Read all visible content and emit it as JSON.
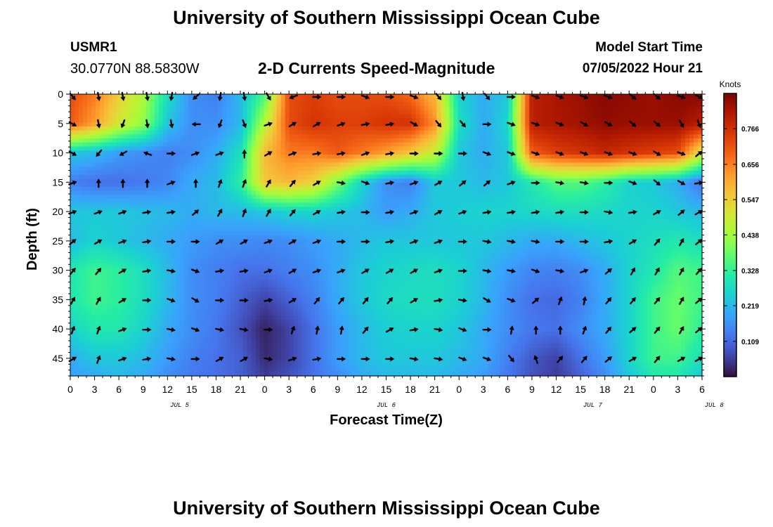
{
  "header": {
    "title": "University of Southern Mississippi Ocean Cube",
    "station": "USMR1",
    "coordinates": "30.0770N  88.5830W",
    "subtitle": "2-D Currents Speed-Magnitude",
    "model_start_label": "Model Start Time",
    "model_start_value": "07/05/2022 Hour 21"
  },
  "footer": {
    "title": "University of Southern Mississippi Ocean Cube"
  },
  "chart_data": {
    "type": "heatmap",
    "xlabel": "Forecast Time(Z)",
    "ylabel": "Depth (ft)",
    "x_tick_labels": [
      "0",
      "3",
      "6",
      "9",
      "12",
      "15",
      "18",
      "21",
      "0",
      "3",
      "6",
      "9",
      "12",
      "15",
      "18",
      "21",
      "0",
      "3",
      "6",
      "9",
      "12",
      "15",
      "18",
      "21",
      "0",
      "3",
      "6"
    ],
    "date_labels": [
      {
        "label": "JUL 5",
        "tick_index": 4.5
      },
      {
        "label": "JUL 6",
        "tick_index": 13
      },
      {
        "label": "JUL 7",
        "tick_index": 21.5
      },
      {
        "label": "JUL 8",
        "tick_index": 26.5
      }
    ],
    "y_tick_labels": [
      "0",
      "5",
      "10",
      "15",
      "20",
      "25",
      "30",
      "35",
      "40",
      "45"
    ],
    "ylim": [
      0,
      48
    ],
    "colorbar": {
      "unit": "Knots",
      "ticks": [
        "0.766",
        "0.656",
        "0.547",
        "0.438",
        "0.328",
        "0.219",
        "0.109"
      ],
      "range": [
        0,
        0.875
      ],
      "stops": [
        "#30123b",
        "#4145ab",
        "#4675ed",
        "#39a2fc",
        "#1bcfd4",
        "#24eca6",
        "#61fc6c",
        "#a4fc3b",
        "#d1e834",
        "#f3c63a",
        "#fe9b2d",
        "#f36315",
        "#d93806",
        "#b11901",
        "#7a0402"
      ]
    },
    "speed_grid": {
      "x_ticks": [
        0,
        3,
        6,
        9,
        12,
        15,
        18,
        21,
        24,
        27,
        30,
        33,
        36,
        39,
        42,
        45,
        48,
        51,
        54,
        57,
        60,
        63,
        66,
        69,
        72,
        75,
        78
      ],
      "depths": [
        0,
        5,
        10,
        15,
        20,
        25,
        30,
        35,
        40,
        45,
        48
      ],
      "knots": [
        [
          0.72,
          0.66,
          0.55,
          0.45,
          0.28,
          0.16,
          0.14,
          0.22,
          0.35,
          0.72,
          0.74,
          0.72,
          0.72,
          0.72,
          0.68,
          0.58,
          0.26,
          0.2,
          0.24,
          0.8,
          0.82,
          0.84,
          0.86,
          0.85,
          0.84,
          0.86,
          0.86
        ],
        [
          0.7,
          0.62,
          0.5,
          0.42,
          0.24,
          0.16,
          0.16,
          0.22,
          0.46,
          0.72,
          0.76,
          0.74,
          0.74,
          0.76,
          0.76,
          0.64,
          0.28,
          0.2,
          0.26,
          0.8,
          0.82,
          0.83,
          0.85,
          0.84,
          0.84,
          0.84,
          0.8
        ],
        [
          0.24,
          0.22,
          0.18,
          0.16,
          0.14,
          0.16,
          0.2,
          0.28,
          0.58,
          0.66,
          0.66,
          0.7,
          0.66,
          0.62,
          0.56,
          0.48,
          0.24,
          0.2,
          0.24,
          0.7,
          0.74,
          0.76,
          0.78,
          0.76,
          0.74,
          0.72,
          0.5
        ],
        [
          0.14,
          0.12,
          0.12,
          0.13,
          0.15,
          0.2,
          0.22,
          0.32,
          0.56,
          0.58,
          0.54,
          0.4,
          0.26,
          0.16,
          0.14,
          0.24,
          0.24,
          0.22,
          0.24,
          0.3,
          0.36,
          0.36,
          0.32,
          0.26,
          0.24,
          0.2,
          0.12
        ],
        [
          0.24,
          0.24,
          0.24,
          0.23,
          0.22,
          0.2,
          0.22,
          0.22,
          0.24,
          0.26,
          0.26,
          0.24,
          0.22,
          0.18,
          0.2,
          0.24,
          0.25,
          0.26,
          0.26,
          0.27,
          0.28,
          0.28,
          0.27,
          0.26,
          0.26,
          0.24,
          0.22
        ],
        [
          0.22,
          0.26,
          0.24,
          0.22,
          0.2,
          0.18,
          0.16,
          0.16,
          0.15,
          0.16,
          0.18,
          0.2,
          0.22,
          0.24,
          0.24,
          0.24,
          0.24,
          0.24,
          0.22,
          0.2,
          0.2,
          0.22,
          0.24,
          0.26,
          0.28,
          0.3,
          0.28
        ],
        [
          0.3,
          0.34,
          0.32,
          0.28,
          0.22,
          0.16,
          0.14,
          0.12,
          0.12,
          0.14,
          0.16,
          0.2,
          0.24,
          0.26,
          0.27,
          0.28,
          0.26,
          0.22,
          0.18,
          0.15,
          0.14,
          0.16,
          0.2,
          0.26,
          0.3,
          0.36,
          0.34
        ],
        [
          0.3,
          0.34,
          0.32,
          0.28,
          0.22,
          0.16,
          0.14,
          0.1,
          0.06,
          0.1,
          0.14,
          0.2,
          0.24,
          0.27,
          0.28,
          0.28,
          0.26,
          0.22,
          0.16,
          0.12,
          0.11,
          0.14,
          0.2,
          0.26,
          0.34,
          0.38,
          0.34
        ],
        [
          0.26,
          0.3,
          0.3,
          0.26,
          0.2,
          0.16,
          0.13,
          0.08,
          0.02,
          0.06,
          0.12,
          0.18,
          0.22,
          0.25,
          0.26,
          0.26,
          0.24,
          0.2,
          0.16,
          0.13,
          0.12,
          0.16,
          0.2,
          0.26,
          0.34,
          0.38,
          0.32
        ],
        [
          0.2,
          0.24,
          0.24,
          0.22,
          0.18,
          0.14,
          0.12,
          0.1,
          0.03,
          0.06,
          0.12,
          0.18,
          0.22,
          0.24,
          0.24,
          0.24,
          0.22,
          0.2,
          0.14,
          0.09,
          0.06,
          0.12,
          0.18,
          0.26,
          0.34,
          0.34,
          0.28
        ],
        [
          0.18,
          0.2,
          0.22,
          0.2,
          0.16,
          0.13,
          0.12,
          0.1,
          0.05,
          0.08,
          0.12,
          0.16,
          0.2,
          0.22,
          0.22,
          0.22,
          0.2,
          0.18,
          0.13,
          0.08,
          0.05,
          0.1,
          0.16,
          0.24,
          0.3,
          0.3,
          0.24
        ]
      ]
    },
    "vectors": {
      "x_ticks": [
        0,
        3.5,
        6.5,
        9.5,
        12.5,
        15.5,
        18.5,
        21.5,
        24.5,
        27.5,
        30.5,
        33.5,
        36.5,
        39.5,
        42.5,
        45.5,
        48.5,
        51.5,
        54.5,
        57.5,
        60.5,
        63.5,
        66.5,
        69.5,
        72.5,
        75.5,
        78
      ],
      "depths": [
        0,
        5,
        10,
        15,
        20,
        25,
        30,
        35,
        40,
        45
      ],
      "direction_deg": [
        [
          140,
          170,
          170,
          170,
          190,
          230,
          190,
          170,
          150,
          250,
          90,
          90,
          110,
          90,
          110,
          140,
          170,
          140,
          90,
          110,
          110,
          110,
          110,
          130,
          130,
          110,
          120
        ],
        [
          120,
          170,
          200,
          170,
          170,
          270,
          200,
          160,
          70,
          60,
          60,
          70,
          80,
          80,
          120,
          140,
          140,
          90,
          110,
          110,
          110,
          120,
          120,
          130,
          130,
          150,
          160
        ],
        [
          120,
          220,
          240,
          290,
          90,
          70,
          70,
          0,
          60,
          70,
          80,
          80,
          70,
          80,
          90,
          90,
          90,
          110,
          110,
          110,
          110,
          110,
          110,
          110,
          120,
          110,
          50
        ],
        [
          70,
          0,
          0,
          0,
          70,
          0,
          20,
          20,
          30,
          40,
          60,
          100,
          110,
          80,
          70,
          60,
          50,
          50,
          70,
          90,
          100,
          100,
          90,
          110,
          130,
          120,
          80
        ],
        [
          70,
          70,
          70,
          80,
          80,
          50,
          30,
          20,
          30,
          40,
          60,
          80,
          90,
          80,
          70,
          60,
          70,
          80,
          80,
          80,
          80,
          90,
          100,
          80,
          60,
          50,
          60
        ],
        [
          50,
          60,
          70,
          80,
          90,
          90,
          60,
          60,
          70,
          60,
          70,
          90,
          90,
          80,
          70,
          70,
          90,
          100,
          100,
          100,
          90,
          90,
          80,
          60,
          40,
          30,
          50
        ],
        [
          40,
          40,
          60,
          80,
          100,
          110,
          80,
          80,
          70,
          60,
          70,
          70,
          60,
          60,
          60,
          70,
          90,
          100,
          100,
          110,
          100,
          70,
          50,
          30,
          30,
          30,
          40
        ],
        [
          30,
          30,
          60,
          90,
          110,
          120,
          90,
          90,
          80,
          60,
          40,
          40,
          40,
          40,
          60,
          80,
          100,
          120,
          110,
          50,
          20,
          10,
          40,
          40,
          40,
          30,
          50
        ],
        [
          20,
          20,
          70,
          90,
          100,
          110,
          100,
          100,
          90,
          20,
          10,
          10,
          40,
          60,
          80,
          100,
          110,
          90,
          10,
          0,
          0,
          20,
          40,
          50,
          40,
          30,
          50
        ],
        [
          60,
          20,
          70,
          80,
          100,
          90,
          60,
          60,
          100,
          70,
          80,
          90,
          90,
          90,
          100,
          100,
          110,
          110,
          140,
          340,
          40,
          40,
          50,
          60,
          40,
          60,
          60
        ]
      ]
    }
  }
}
